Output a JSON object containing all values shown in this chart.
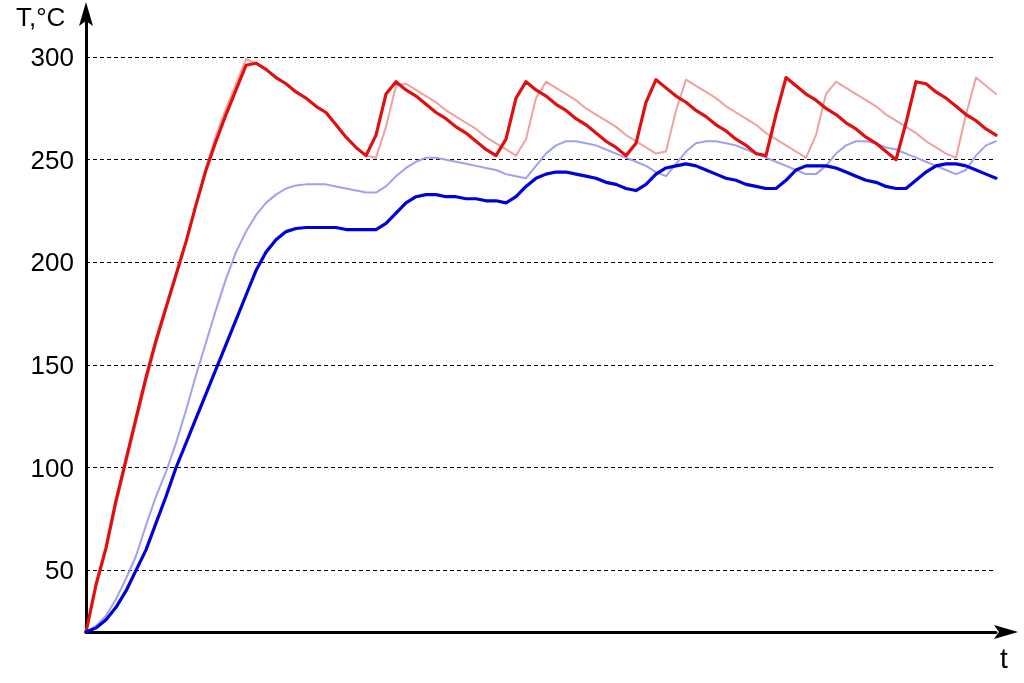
{
  "chart_data": {
    "type": "line",
    "xlabel": "t",
    "ylabel": "T,°C",
    "categories": [
      null,
      null,
      null,
      null,
      null,
      null,
      null,
      null,
      null,
      null,
      null,
      null,
      null,
      null,
      null,
      null,
      null,
      null,
      null,
      null,
      null,
      null,
      null,
      null,
      null,
      null,
      null,
      null,
      null,
      null,
      null,
      null,
      null,
      null,
      null,
      null,
      null,
      null,
      null,
      null,
      null,
      null,
      null,
      null,
      null,
      null,
      null,
      null,
      null,
      null,
      null,
      null,
      null,
      null,
      null,
      null,
      null,
      null,
      null,
      null,
      null,
      null,
      null,
      null,
      null,
      null,
      null,
      null,
      null,
      null,
      null,
      null,
      null,
      null,
      null,
      null,
      null,
      null,
      null,
      null,
      null,
      null,
      null,
      null,
      null,
      null,
      null,
      null,
      null,
      null,
      null,
      null
    ],
    "series": [
      {
        "color": "#f0a0a0",
        "values": [
          20,
          42,
          60,
          82,
          102,
          122,
          142,
          160,
          177,
          193,
          210,
          228,
          246,
          262,
          275,
          287,
          299,
          297,
          294,
          290,
          287,
          283,
          280,
          276,
          273,
          267,
          261,
          256,
          252,
          251,
          266,
          286,
          287,
          284,
          281,
          278,
          274,
          271,
          268,
          265,
          261,
          258,
          255,
          252,
          260,
          280,
          288,
          285,
          282,
          279,
          275,
          272,
          269,
          266,
          262,
          259,
          256,
          253,
          254,
          274,
          289,
          286,
          283,
          280,
          276,
          273,
          270,
          267,
          263,
          260,
          257,
          254,
          251,
          262,
          282,
          288,
          285,
          282,
          279,
          276,
          272,
          269,
          266,
          263,
          259,
          256,
          253,
          251,
          272,
          290,
          286,
          282
        ]
      },
      {
        "color": "#a0a0f0",
        "values": [
          20,
          23,
          28,
          36,
          46,
          57,
          72,
          86,
          98,
          112,
          128,
          145,
          161,
          177,
          192,
          205,
          215,
          223,
          229,
          233,
          236,
          237.5,
          238,
          238,
          238,
          237,
          236,
          235,
          234,
          234,
          237,
          242,
          246,
          249,
          251,
          251,
          250,
          249,
          248,
          247,
          246,
          245,
          243,
          242,
          241,
          247,
          253,
          257,
          259,
          259,
          258,
          257,
          255,
          253,
          251,
          249,
          247,
          244,
          242,
          248,
          254,
          258,
          259,
          259,
          258,
          257,
          255,
          253,
          251,
          249,
          247,
          245,
          243,
          243,
          247,
          253,
          257,
          259,
          259,
          258,
          256,
          255,
          253,
          251,
          249,
          247,
          245,
          243,
          245,
          252,
          257,
          259
        ]
      },
      {
        "color": "#e01010",
        "values": [
          20,
          43,
          61,
          84,
          104,
          124,
          144,
          162,
          178,
          194,
          210,
          228,
          245,
          259,
          272,
          284,
          296,
          297,
          294,
          290,
          287,
          283,
          280,
          276,
          273,
          267,
          261,
          256,
          252,
          262,
          282,
          288,
          284,
          281,
          277,
          273,
          270,
          266,
          263,
          259,
          255,
          252,
          260,
          280,
          288,
          284,
          281,
          277,
          274,
          270,
          267,
          263,
          259,
          256,
          252,
          258,
          278,
          289,
          285,
          281,
          278,
          274,
          271,
          267,
          264,
          260,
          257,
          253,
          252,
          272,
          290,
          286,
          282,
          279,
          275,
          272,
          268,
          265,
          261,
          258,
          254,
          250,
          268,
          288,
          287,
          283,
          280,
          276,
          272,
          269,
          265,
          262
        ]
      },
      {
        "color": "#0000d8",
        "values": [
          20,
          22,
          26,
          32,
          40,
          50,
          60,
          73,
          86,
          100,
          112,
          124,
          136,
          148,
          160,
          172,
          184,
          196,
          205,
          211,
          215,
          216.5,
          217,
          217,
          217,
          217,
          216,
          216,
          216,
          216,
          219,
          224,
          229,
          232,
          233,
          233,
          232,
          232,
          231,
          231,
          230,
          230,
          229,
          232,
          237,
          241,
          243,
          244,
          244,
          243,
          242,
          241,
          239,
          238,
          236,
          235,
          238,
          243,
          246,
          247,
          248,
          247,
          245,
          243,
          241,
          240,
          238,
          237,
          236,
          236,
          240,
          245,
          247,
          247,
          247,
          246,
          244,
          242,
          240,
          239,
          237,
          236,
          236,
          240,
          244,
          247,
          248,
          248,
          247,
          245,
          243,
          241
        ]
      }
    ],
    "ylim": [
      20,
      320
    ],
    "yticks": [
      50,
      100,
      150,
      200,
      250,
      300
    ],
    "grid": "y"
  }
}
